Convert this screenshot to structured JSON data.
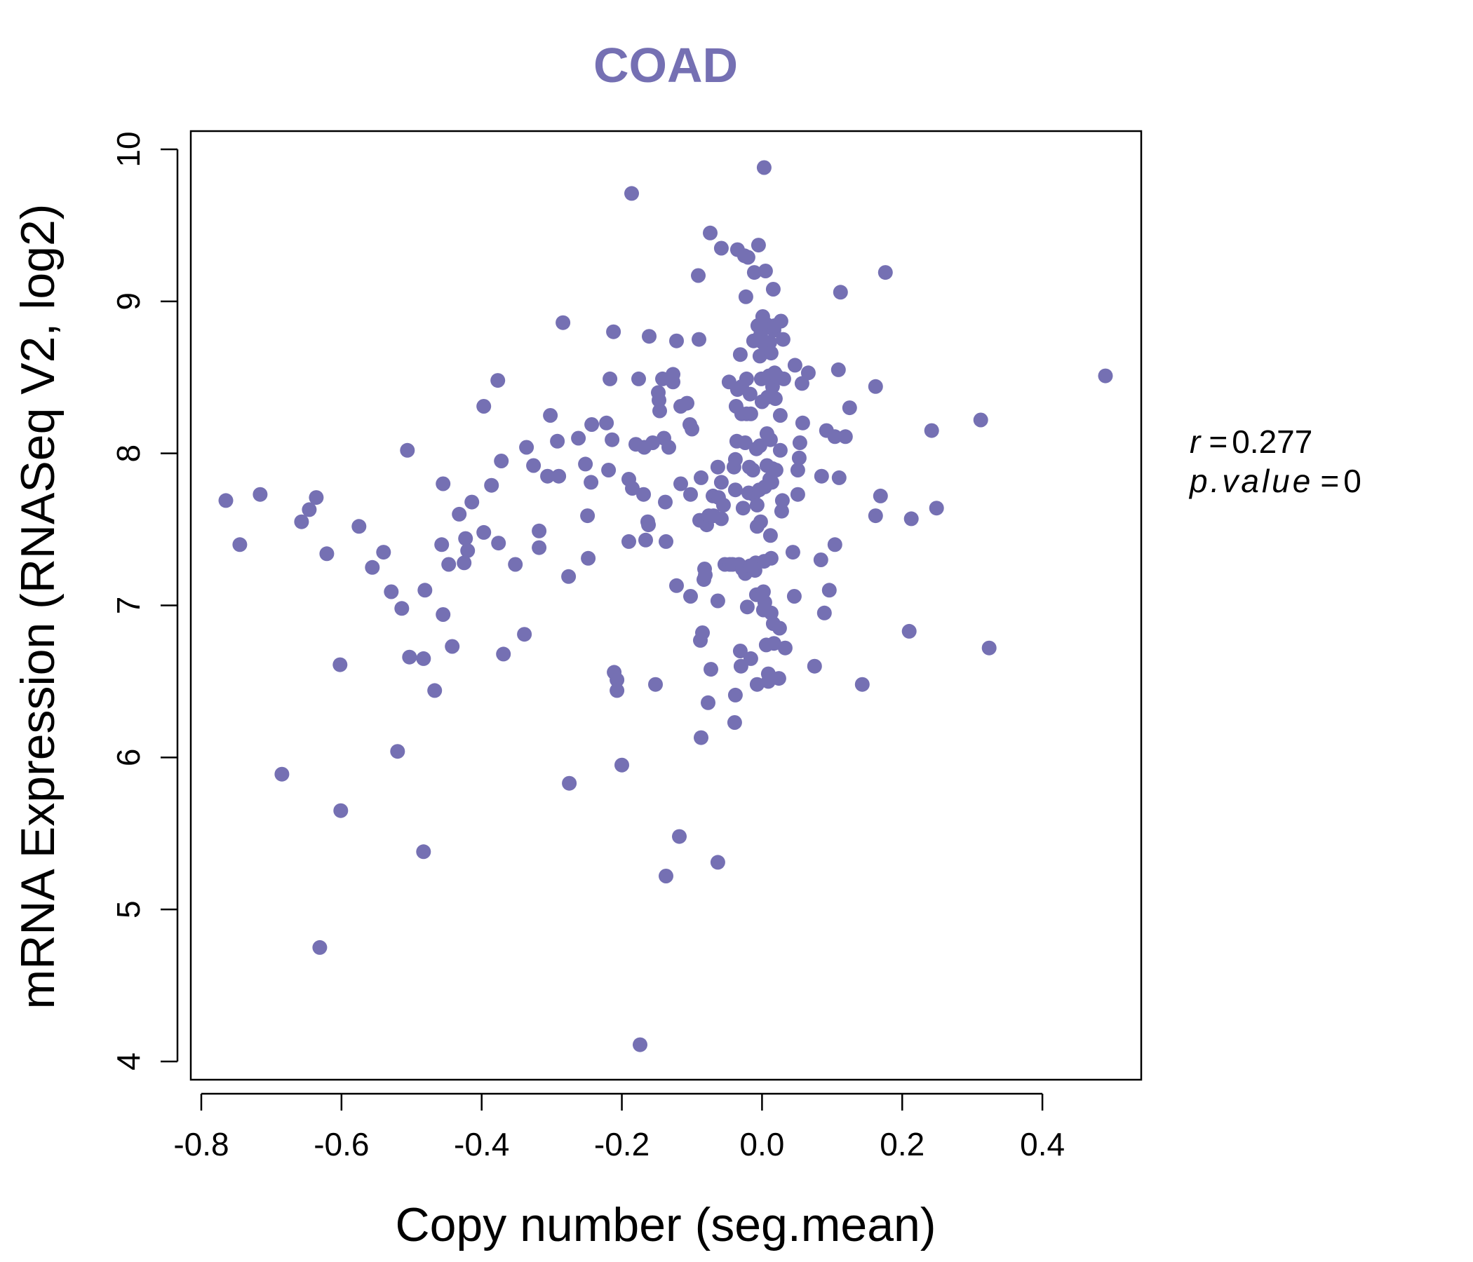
{
  "chart_data": {
    "type": "scatter",
    "title": "COAD",
    "xlabel": "Copy number (seg.mean)",
    "ylabel": "mRNA Expression (RNASeq V2, log2)",
    "xlim": [
      -0.815,
      0.541
    ],
    "ylim": [
      3.88,
      10.12
    ],
    "xticks": [
      -0.8,
      -0.6,
      -0.4,
      -0.2,
      0.0,
      0.2,
      0.4
    ],
    "xtick_labels": [
      "-0.8",
      "-0.6",
      "-0.4",
      "-0.2",
      "0.0",
      "0.2",
      "0.4"
    ],
    "yticks": [
      4,
      5,
      6,
      7,
      8,
      9,
      10
    ],
    "ytick_labels": [
      "4",
      "5",
      "6",
      "7",
      "8",
      "9",
      "10"
    ],
    "point_color": "#7570B3",
    "title_color": "#7570B3",
    "stats": {
      "r_symbol": "r",
      "r_value": "0.277",
      "p_symbol": "p.value",
      "p_value": "0"
    },
    "points": [
      [
        -0.765,
        7.69
      ],
      [
        -0.745,
        7.4
      ],
      [
        -0.716,
        7.73
      ],
      [
        -0.685,
        5.89
      ],
      [
        -0.657,
        7.55
      ],
      [
        -0.646,
        7.63
      ],
      [
        -0.636,
        7.71
      ],
      [
        -0.631,
        4.75
      ],
      [
        -0.621,
        7.34
      ],
      [
        -0.602,
        6.61
      ],
      [
        -0.601,
        5.65
      ],
      [
        -0.575,
        7.52
      ],
      [
        -0.556,
        7.25
      ],
      [
        -0.54,
        7.35
      ],
      [
        -0.529,
        7.09
      ],
      [
        -0.52,
        6.04
      ],
      [
        -0.514,
        6.98
      ],
      [
        -0.506,
        8.02
      ],
      [
        -0.503,
        6.66
      ],
      [
        -0.483,
        5.38
      ],
      [
        -0.481,
        7.1
      ],
      [
        -0.483,
        6.65
      ],
      [
        -0.467,
        6.44
      ],
      [
        -0.457,
        7.4
      ],
      [
        -0.455,
        7.8
      ],
      [
        -0.455,
        6.94
      ],
      [
        -0.447,
        7.27
      ],
      [
        -0.442,
        6.73
      ],
      [
        -0.432,
        7.6
      ],
      [
        -0.425,
        7.28
      ],
      [
        -0.423,
        7.44
      ],
      [
        -0.42,
        7.36
      ],
      [
        -0.414,
        7.68
      ],
      [
        -0.397,
        7.48
      ],
      [
        -0.397,
        8.31
      ],
      [
        -0.386,
        7.79
      ],
      [
        -0.377,
        8.48
      ],
      [
        -0.376,
        7.41
      ],
      [
        -0.372,
        7.95
      ],
      [
        -0.369,
        6.68
      ],
      [
        -0.352,
        7.27
      ],
      [
        -0.339,
        6.81
      ],
      [
        -0.336,
        8.04
      ],
      [
        -0.326,
        7.92
      ],
      [
        -0.318,
        7.49
      ],
      [
        -0.318,
        7.38
      ],
      [
        -0.306,
        7.85
      ],
      [
        -0.302,
        8.25
      ],
      [
        -0.292,
        8.08
      ],
      [
        -0.29,
        7.85
      ],
      [
        -0.284,
        8.86
      ],
      [
        -0.276,
        7.19
      ],
      [
        -0.275,
        5.83
      ],
      [
        -0.262,
        8.1
      ],
      [
        -0.252,
        7.93
      ],
      [
        -0.249,
        7.59
      ],
      [
        -0.248,
        7.31
      ],
      [
        -0.244,
        7.81
      ],
      [
        -0.243,
        8.19
      ],
      [
        -0.222,
        8.2
      ],
      [
        -0.219,
        7.89
      ],
      [
        -0.217,
        8.49
      ],
      [
        -0.214,
        8.09
      ],
      [
        -0.212,
        8.8
      ],
      [
        -0.211,
        6.56
      ],
      [
        -0.207,
        6.51
      ],
      [
        -0.207,
        6.44
      ],
      [
        -0.2,
        5.95
      ],
      [
        -0.19,
        7.42
      ],
      [
        -0.19,
        7.83
      ],
      [
        -0.186,
        9.71
      ],
      [
        -0.185,
        7.77
      ],
      [
        -0.18,
        8.06
      ],
      [
        -0.176,
        8.49
      ],
      [
        -0.174,
        4.11
      ],
      [
        -0.169,
        7.73
      ],
      [
        -0.168,
        8.04
      ],
      [
        -0.166,
        7.43
      ],
      [
        -0.163,
        7.55
      ],
      [
        -0.162,
        7.53
      ],
      [
        -0.161,
        8.77
      ],
      [
        -0.156,
        8.07
      ],
      [
        -0.152,
        6.48
      ],
      [
        -0.148,
        8.4
      ],
      [
        -0.147,
        8.35
      ],
      [
        -0.146,
        8.28
      ],
      [
        -0.142,
        8.49
      ],
      [
        -0.14,
        8.1
      ],
      [
        -0.138,
        7.68
      ],
      [
        -0.137,
        5.22
      ],
      [
        -0.137,
        7.42
      ],
      [
        -0.133,
        8.04
      ],
      [
        -0.127,
        8.47
      ],
      [
        -0.127,
        8.52
      ],
      [
        -0.122,
        7.13
      ],
      [
        -0.122,
        8.74
      ],
      [
        -0.118,
        5.48
      ],
      [
        -0.116,
        8.31
      ],
      [
        -0.116,
        7.8
      ],
      [
        -0.107,
        8.33
      ],
      [
        -0.103,
        8.19
      ],
      [
        -0.102,
        7.06
      ],
      [
        -0.102,
        7.73
      ],
      [
        -0.1,
        8.16
      ],
      [
        -0.091,
        9.17
      ],
      [
        -0.09,
        8.75
      ],
      [
        -0.089,
        7.56
      ],
      [
        -0.088,
        6.77
      ],
      [
        -0.087,
        6.13
      ],
      [
        -0.087,
        7.84
      ],
      [
        -0.085,
        6.82
      ],
      [
        -0.083,
        7.17
      ],
      [
        -0.082,
        7.24
      ],
      [
        -0.081,
        7.2
      ],
      [
        -0.079,
        7.53
      ],
      [
        -0.077,
        6.36
      ],
      [
        -0.076,
        7.59
      ],
      [
        -0.074,
        9.45
      ],
      [
        -0.073,
        6.58
      ],
      [
        -0.07,
        7.72
      ],
      [
        -0.069,
        7.59
      ],
      [
        -0.063,
        7.91
      ],
      [
        -0.063,
        7.03
      ],
      [
        -0.063,
        5.31
      ],
      [
        -0.062,
        7.71
      ],
      [
        -0.058,
        9.35
      ],
      [
        -0.058,
        7.81
      ],
      [
        -0.058,
        7.57
      ],
      [
        -0.055,
        7.66
      ],
      [
        -0.053,
        7.27
      ],
      [
        -0.047,
        8.47
      ],
      [
        -0.046,
        7.27
      ],
      [
        -0.042,
        7.27
      ],
      [
        -0.04,
        7.91
      ],
      [
        -0.039,
        6.23
      ],
      [
        -0.038,
        7.96
      ],
      [
        -0.038,
        6.41
      ],
      [
        -0.038,
        7.76
      ],
      [
        -0.037,
        8.31
      ],
      [
        -0.036,
        8.08
      ],
      [
        -0.035,
        8.42
      ],
      [
        -0.035,
        9.34
      ],
      [
        -0.033,
        7.27
      ],
      [
        -0.031,
        6.7
      ],
      [
        -0.031,
        8.65
      ],
      [
        -0.03,
        6.6
      ],
      [
        -0.029,
        8.26
      ],
      [
        -0.029,
        8.44
      ],
      [
        -0.028,
        7.24
      ],
      [
        -0.027,
        7.64
      ],
      [
        -0.025,
        9.3
      ],
      [
        -0.024,
        8.07
      ],
      [
        -0.024,
        7.21
      ],
      [
        -0.023,
        9.03
      ],
      [
        -0.022,
        8.49
      ],
      [
        -0.022,
        8.26
      ],
      [
        -0.021,
        6.99
      ],
      [
        -0.02,
        9.29
      ],
      [
        -0.019,
        7.74
      ],
      [
        -0.018,
        7.91
      ],
      [
        -0.017,
        8.39
      ],
      [
        -0.017,
        7.26
      ],
      [
        -0.016,
        6.65
      ],
      [
        -0.016,
        8.26
      ],
      [
        -0.016,
        7.26
      ],
      [
        -0.013,
        7.89
      ],
      [
        -0.012,
        7.73
      ],
      [
        -0.012,
        8.74
      ],
      [
        -0.011,
        9.19
      ],
      [
        -0.01,
        7.23
      ],
      [
        -0.009,
        7.28
      ],
      [
        -0.008,
        7.07
      ],
      [
        -0.008,
        8.03
      ],
      [
        -0.007,
        7.52
      ],
      [
        -0.007,
        6.48
      ],
      [
        -0.007,
        7.66
      ],
      [
        -0.006,
        8.84
      ],
      [
        -0.005,
        9.37
      ],
      [
        -0.004,
        7.76
      ],
      [
        -0.003,
        8.64
      ],
      [
        -0.003,
        8.05
      ],
      [
        -0.002,
        8.78
      ],
      [
        -0.002,
        7.55
      ],
      [
        -0.001,
        8.49
      ],
      [
        0.0,
        8.34
      ],
      [
        0.001,
        8.73
      ],
      [
        0.001,
        8.9
      ],
      [
        0.002,
        7.09
      ],
      [
        0.002,
        6.97
      ],
      [
        0.003,
        7.29
      ],
      [
        0.003,
        9.88
      ],
      [
        0.004,
        7.02
      ],
      [
        0.004,
        7.78
      ],
      [
        0.005,
        9.2
      ],
      [
        0.006,
        6.74
      ],
      [
        0.006,
        8.85
      ],
      [
        0.007,
        8.13
      ],
      [
        0.007,
        8.69
      ],
      [
        0.007,
        7.92
      ],
      [
        0.008,
        8.37
      ],
      [
        0.009,
        6.55
      ],
      [
        0.009,
        6.5
      ],
      [
        0.01,
        8.51
      ],
      [
        0.011,
        7.83
      ],
      [
        0.011,
        8.73
      ],
      [
        0.012,
        7.46
      ],
      [
        0.012,
        8.09
      ],
      [
        0.013,
        7.31
      ],
      [
        0.013,
        8.66
      ],
      [
        0.013,
        6.95
      ],
      [
        0.014,
        7.81
      ],
      [
        0.015,
        8.44
      ],
      [
        0.015,
        7.9
      ],
      [
        0.016,
        6.88
      ],
      [
        0.016,
        9.08
      ],
      [
        0.017,
        8.81
      ],
      [
        0.017,
        6.75
      ],
      [
        0.018,
        8.84
      ],
      [
        0.018,
        8.53
      ],
      [
        0.019,
        8.36
      ],
      [
        0.02,
        7.89
      ],
      [
        0.021,
        8.51
      ],
      [
        0.024,
        6.52
      ],
      [
        0.025,
        6.85
      ],
      [
        0.026,
        8.02
      ],
      [
        0.026,
        8.25
      ],
      [
        0.027,
        8.87
      ],
      [
        0.028,
        7.62
      ],
      [
        0.029,
        7.69
      ],
      [
        0.03,
        8.75
      ],
      [
        0.031,
        8.49
      ],
      [
        0.033,
        6.72
      ],
      [
        0.044,
        7.35
      ],
      [
        0.046,
        7.06
      ],
      [
        0.047,
        8.58
      ],
      [
        0.051,
        7.73
      ],
      [
        0.051,
        7.89
      ],
      [
        0.053,
        7.97
      ],
      [
        0.054,
        8.07
      ],
      [
        0.057,
        8.46
      ],
      [
        0.058,
        8.2
      ],
      [
        0.066,
        8.53
      ],
      [
        0.075,
        6.6
      ],
      [
        0.084,
        7.3
      ],
      [
        0.085,
        7.85
      ],
      [
        0.089,
        6.95
      ],
      [
        0.092,
        8.15
      ],
      [
        0.096,
        7.1
      ],
      [
        0.104,
        8.11
      ],
      [
        0.104,
        7.4
      ],
      [
        0.109,
        8.55
      ],
      [
        0.11,
        7.84
      ],
      [
        0.112,
        9.06
      ],
      [
        0.119,
        8.11
      ],
      [
        0.125,
        8.3
      ],
      [
        0.143,
        6.48
      ],
      [
        0.162,
        8.44
      ],
      [
        0.162,
        7.59
      ],
      [
        0.169,
        7.72
      ],
      [
        0.176,
        9.19
      ],
      [
        0.21,
        6.83
      ],
      [
        0.213,
        7.57
      ],
      [
        0.242,
        8.15
      ],
      [
        0.249,
        7.64
      ],
      [
        0.312,
        8.22
      ],
      [
        0.324,
        6.72
      ],
      [
        0.49,
        8.51
      ]
    ]
  }
}
